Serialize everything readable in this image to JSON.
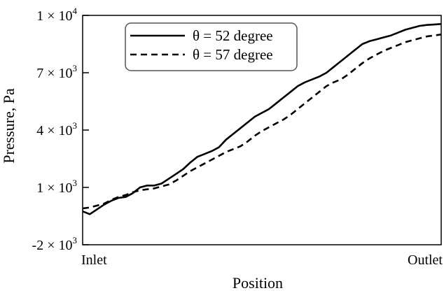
{
  "chart_data": {
    "type": "line",
    "xlabel": "Position",
    "ylabel": "Pressure, Pa",
    "x_ticks": [
      "Inlet",
      "Outlet"
    ],
    "y_ticks": [
      {
        "value": -2000,
        "mantissa": "-2 × 10",
        "exponent": "3"
      },
      {
        "value": 1000,
        "mantissa": "1 × 10",
        "exponent": "3"
      },
      {
        "value": 4000,
        "mantissa": "4 × 10",
        "exponent": "3"
      },
      {
        "value": 7000,
        "mantissa": "7 × 10",
        "exponent": "3"
      },
      {
        "value": 10000,
        "mantissa": "1 × 10",
        "exponent": "4"
      }
    ],
    "xlim": [
      0,
      1
    ],
    "ylim": [
      -2000,
      10000
    ],
    "grid": false,
    "legend_position": "top-left",
    "series": [
      {
        "name": "θ = 52 degree",
        "style": "solid",
        "color": "#000000",
        "x": [
          0.0,
          0.02,
          0.04,
          0.06,
          0.08,
          0.1,
          0.12,
          0.14,
          0.16,
          0.18,
          0.2,
          0.22,
          0.24,
          0.26,
          0.28,
          0.3,
          0.32,
          0.34,
          0.36,
          0.38,
          0.4,
          0.42,
          0.44,
          0.46,
          0.48,
          0.5,
          0.52,
          0.54,
          0.56,
          0.58,
          0.6,
          0.62,
          0.64,
          0.66,
          0.68,
          0.7,
          0.72,
          0.74,
          0.76,
          0.78,
          0.8,
          0.82,
          0.84,
          0.86,
          0.88,
          0.9,
          0.92,
          0.94,
          0.96,
          0.98,
          1.0
        ],
        "values": [
          -250,
          -400,
          -150,
          100,
          300,
          450,
          500,
          700,
          1000,
          1100,
          1100,
          1200,
          1450,
          1700,
          1950,
          2300,
          2600,
          2750,
          2900,
          3100,
          3500,
          3800,
          4100,
          4400,
          4700,
          4900,
          5100,
          5400,
          5700,
          6000,
          6300,
          6500,
          6650,
          6800,
          7000,
          7300,
          7600,
          7900,
          8200,
          8500,
          8650,
          8750,
          8850,
          8950,
          9100,
          9250,
          9350,
          9450,
          9500,
          9520,
          9550
        ]
      },
      {
        "name": "θ = 57 degree",
        "style": "dashed",
        "color": "#000000",
        "x": [
          0.0,
          0.02,
          0.04,
          0.06,
          0.08,
          0.1,
          0.12,
          0.14,
          0.16,
          0.18,
          0.2,
          0.22,
          0.24,
          0.26,
          0.28,
          0.3,
          0.32,
          0.34,
          0.36,
          0.38,
          0.4,
          0.42,
          0.44,
          0.46,
          0.48,
          0.5,
          0.52,
          0.54,
          0.56,
          0.58,
          0.6,
          0.62,
          0.64,
          0.66,
          0.68,
          0.7,
          0.72,
          0.74,
          0.76,
          0.78,
          0.8,
          0.82,
          0.84,
          0.86,
          0.88,
          0.9,
          0.92,
          0.94,
          0.96,
          0.98,
          1.0
        ],
        "values": [
          -100,
          -50,
          50,
          150,
          350,
          500,
          600,
          750,
          850,
          900,
          950,
          1050,
          1150,
          1350,
          1600,
          1850,
          2050,
          2250,
          2450,
          2650,
          2850,
          3000,
          3150,
          3400,
          3700,
          3950,
          4150,
          4350,
          4550,
          4800,
          5100,
          5400,
          5700,
          6000,
          6300,
          6500,
          6650,
          6900,
          7200,
          7500,
          7750,
          7950,
          8150,
          8300,
          8450,
          8600,
          8700,
          8800,
          8900,
          8950,
          9000
        ]
      }
    ]
  }
}
